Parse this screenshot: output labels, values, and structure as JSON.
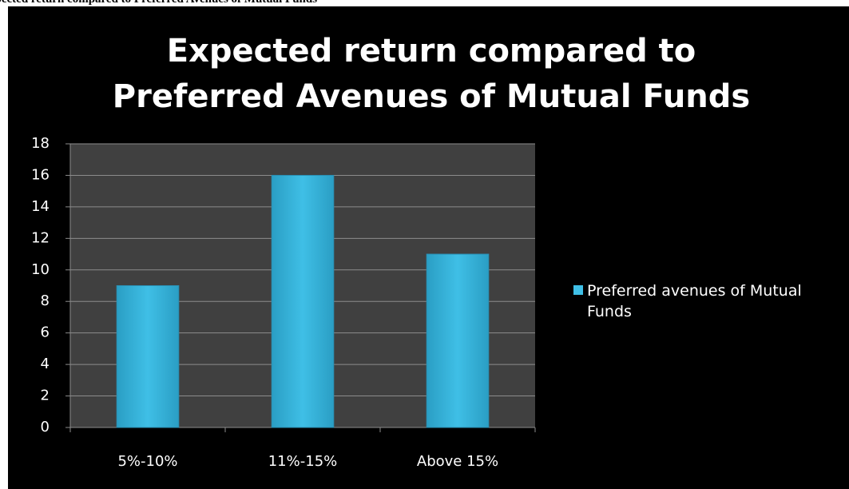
{
  "caption": "Expected return compared to Preferred Avenues of Mutual Funds",
  "chart_data": {
    "type": "bar",
    "title": "Expected return compared to Preferred Avenues of Mutual Funds",
    "categories": [
      "5%-10%",
      "11%-15%",
      "Above 15%"
    ],
    "series": [
      {
        "name": "Preferred avenues of Mutual Funds",
        "color": "#3fbfe6",
        "values": [
          9,
          16,
          11
        ]
      }
    ],
    "ylim": [
      0,
      18
    ],
    "yticks": [
      0,
      2,
      4,
      6,
      8,
      10,
      12,
      14,
      16,
      18
    ],
    "grid": true,
    "legend": "right"
  }
}
